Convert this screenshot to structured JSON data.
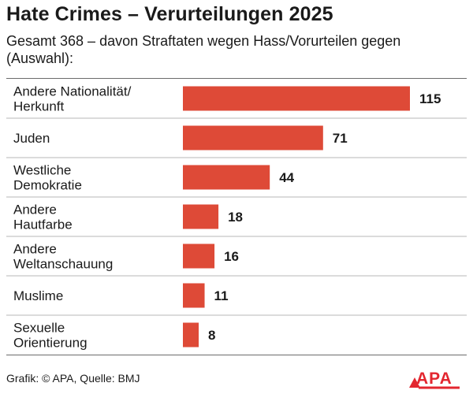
{
  "chart_data": {
    "type": "bar",
    "orientation": "horizontal",
    "title": "Hate Crimes – Verurteilungen 2025",
    "subtitle": "Gesamt 368 – davon Straftaten wegen Hass/Vorurteilen gegen (Auswahl):",
    "categories": [
      [
        "Andere Nationalität/",
        "Herkunft"
      ],
      [
        "Juden"
      ],
      [
        "Westliche",
        "Demokratie"
      ],
      [
        "Andere",
        "Hautfarbe"
      ],
      [
        "Andere",
        "Weltanschauung"
      ],
      [
        "Muslime"
      ],
      [
        "Sexuelle",
        "Orientierung"
      ]
    ],
    "values": [
      115,
      71,
      44,
      18,
      16,
      11,
      8
    ],
    "xlim": [
      0,
      115
    ],
    "xlabel": "",
    "ylabel": "",
    "grid": false,
    "bar_color": "#de4a37"
  },
  "footer": {
    "source": "Grafik: © APA, Quelle: BMJ",
    "logo_text": "APA"
  },
  "colors": {
    "bar": "#de4a37",
    "text": "#1a1a1a",
    "logo": "#e3262f"
  }
}
